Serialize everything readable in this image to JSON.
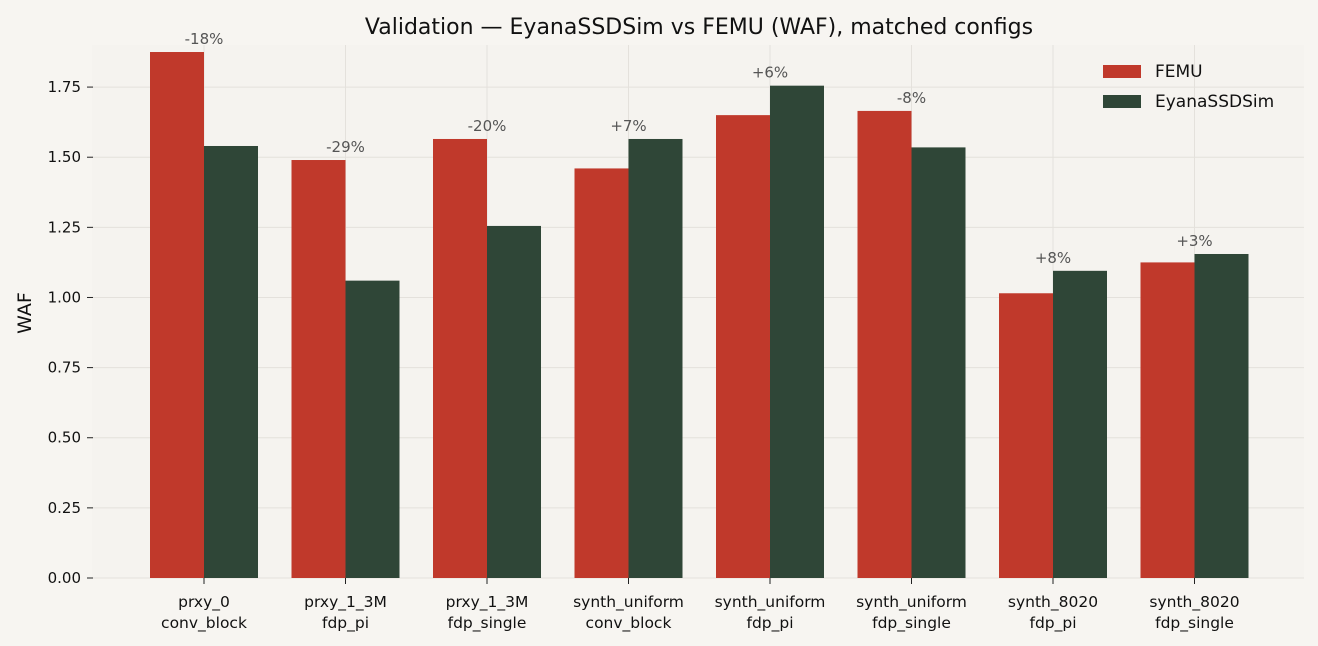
{
  "chart_data": {
    "type": "bar",
    "title": "Validation — EyanaSSDSim vs FEMU (WAF), matched configs",
    "ylabel": "WAF",
    "xlabel": "",
    "ylim": [
      0,
      1.9
    ],
    "yticks": [
      "0.00",
      "0.25",
      "0.50",
      "0.75",
      "1.00",
      "1.25",
      "1.50",
      "1.75"
    ],
    "grid": true,
    "legend_position": "top-right",
    "categories": [
      [
        "prxy_0",
        "conv_block"
      ],
      [
        "prxy_1_3M",
        "fdp_pi"
      ],
      [
        "prxy_1_3M",
        "fdp_single"
      ],
      [
        "synth_uniform",
        "conv_block"
      ],
      [
        "synth_uniform",
        "fdp_pi"
      ],
      [
        "synth_uniform",
        "fdp_single"
      ],
      [
        "synth_8020",
        "fdp_pi"
      ],
      [
        "synth_8020",
        "fdp_single"
      ]
    ],
    "series": [
      {
        "name": "FEMU",
        "color": "#c0392b",
        "values": [
          1.875,
          1.49,
          1.565,
          1.46,
          1.65,
          1.665,
          1.015,
          1.125
        ]
      },
      {
        "name": "EyanaSSDSim",
        "color": "#2f4637",
        "values": [
          1.54,
          1.06,
          1.255,
          1.565,
          1.755,
          1.535,
          1.095,
          1.155
        ]
      }
    ],
    "annotations": [
      "-18%",
      "-29%",
      "-20%",
      "+7%",
      "+6%",
      "-8%",
      "+8%",
      "+3%"
    ]
  }
}
